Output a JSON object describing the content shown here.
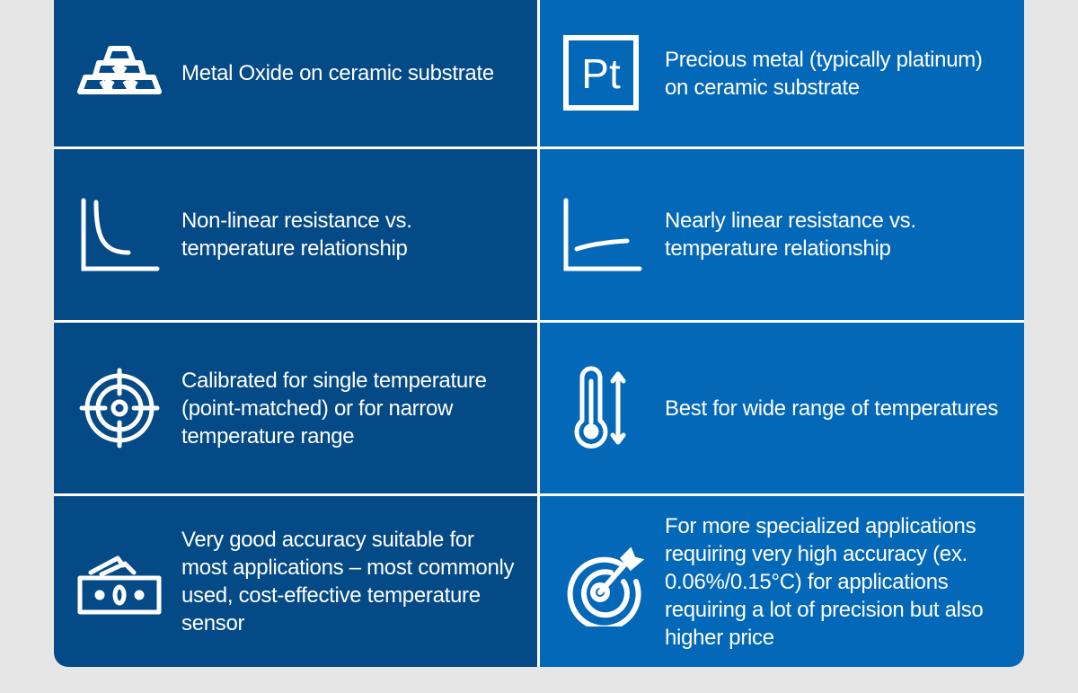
{
  "colors": {
    "left_column": "#044a86",
    "right_column": "#0468b8",
    "background": "#e6e6e6",
    "divider": "#ffffff"
  },
  "rows": [
    {
      "left": {
        "icon": "gold-bars-icon",
        "text": "Metal Oxide on ceramic substrate"
      },
      "right": {
        "icon": "platinum-element-icon",
        "icon_label": "Pt",
        "text": "Precious metal (typically platinum) on ceramic substrate"
      }
    },
    {
      "left": {
        "icon": "nonlinear-curve-icon",
        "text": "Non-linear resistance vs. temperature relationship"
      },
      "right": {
        "icon": "linear-curve-icon",
        "text": "Nearly linear resistance vs. temperature relationship"
      }
    },
    {
      "left": {
        "icon": "crosshair-icon",
        "text": "Calibrated for single temperature (point-matched) or for narrow temperature range"
      },
      "right": {
        "icon": "thermometer-range-icon",
        "text": "Best for wide range of temperatures"
      }
    },
    {
      "left": {
        "icon": "money-icon",
        "text": "Very good accuracy suitable for most applications – most commonly used, cost-effective temperature sensor"
      },
      "right": {
        "icon": "target-arrow-icon",
        "text": "For more specialized applications requiring very high accuracy (ex. 0.06%/0.15°C)  for applications requiring a lot of precision but also higher price"
      }
    }
  ]
}
